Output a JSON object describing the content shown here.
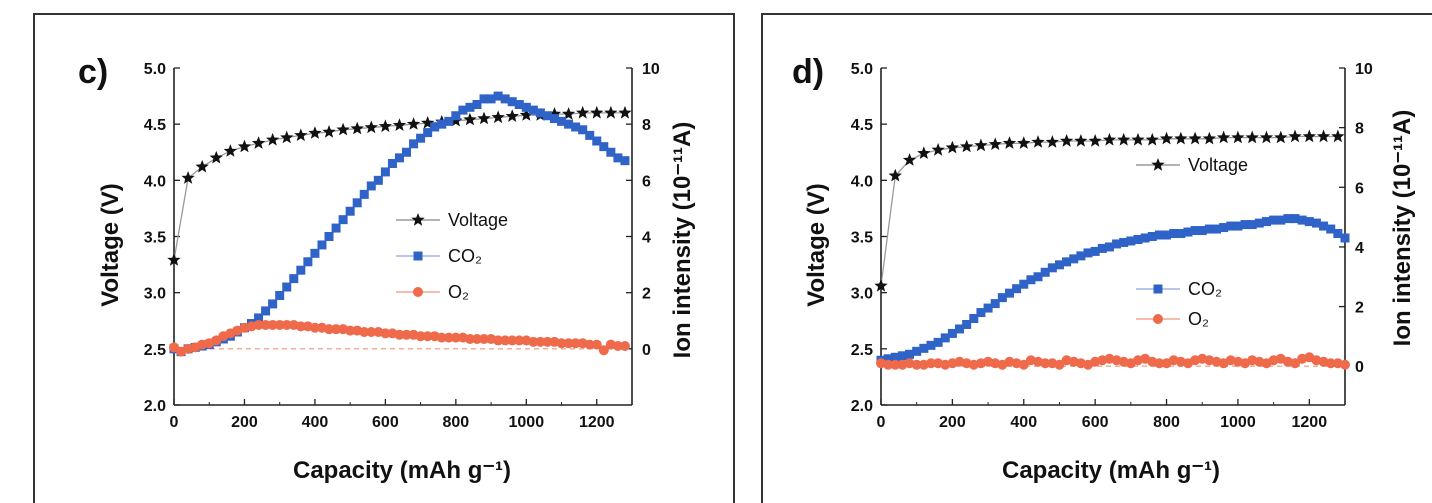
{
  "colors": {
    "background": "#ffffff",
    "frame": "#333333",
    "axis": "#222222",
    "voltage": "#111111",
    "co2": "#2f63c7",
    "co2_line": "#9db4e6",
    "o2": "#ee6a4a",
    "o2_line": "#f5a58f"
  },
  "chart_data": [
    {
      "panel_label": "c)",
      "type": "scatter",
      "xlabel": "Capacity (mAh g⁻¹)",
      "ylabel_left": "Voltage (V)",
      "ylabel_right": "Ion intensity (10⁻¹¹A)",
      "xlim": [
        0,
        1300
      ],
      "ylim_left": [
        2.0,
        5.0
      ],
      "ylim_right": [
        -2,
        10
      ],
      "xticks": [
        "0",
        "200",
        "400",
        "600",
        "800",
        "1000",
        "1200"
      ],
      "yticks_left": [
        "2.0",
        "2.5",
        "3.0",
        "3.5",
        "4.0",
        "4.5",
        "5.0"
      ],
      "yticks_right": [
        "0",
        "2",
        "4",
        "6",
        "8",
        "10"
      ],
      "legend_position": "center-right",
      "legend": [
        {
          "label": "Voltage",
          "marker": "star"
        },
        {
          "label": "CO₂",
          "marker": "square"
        },
        {
          "label": "O₂",
          "marker": "circle"
        }
      ],
      "series": [
        {
          "name": "Voltage",
          "axis": "left",
          "marker": "star",
          "x": [
            0,
            40,
            80,
            120,
            160,
            200,
            240,
            280,
            320,
            360,
            400,
            440,
            480,
            520,
            560,
            600,
            640,
            680,
            720,
            760,
            800,
            840,
            880,
            920,
            960,
            1000,
            1040,
            1080,
            1120,
            1160,
            1200,
            1240,
            1280
          ],
          "y": [
            3.29,
            4.02,
            4.12,
            4.2,
            4.26,
            4.3,
            4.33,
            4.36,
            4.38,
            4.4,
            4.42,
            4.43,
            4.45,
            4.46,
            4.47,
            4.48,
            4.49,
            4.5,
            4.51,
            4.52,
            4.53,
            4.54,
            4.55,
            4.56,
            4.57,
            4.58,
            4.58,
            4.59,
            4.59,
            4.6,
            4.6,
            4.6,
            4.6
          ]
        },
        {
          "name": "CO₂",
          "axis": "right",
          "marker": "square",
          "x": [
            0,
            20,
            40,
            60,
            80,
            100,
            120,
            140,
            160,
            180,
            200,
            220,
            240,
            260,
            280,
            300,
            320,
            340,
            360,
            380,
            400,
            420,
            440,
            460,
            480,
            500,
            520,
            540,
            560,
            580,
            600,
            620,
            640,
            660,
            680,
            700,
            720,
            740,
            760,
            780,
            800,
            820,
            840,
            860,
            880,
            900,
            920,
            940,
            960,
            980,
            1000,
            1020,
            1040,
            1060,
            1080,
            1100,
            1120,
            1140,
            1160,
            1180,
            1200,
            1220,
            1240,
            1260,
            1280
          ],
          "y": [
            0.0,
            -0.1,
            0.0,
            0.05,
            0.1,
            0.15,
            0.25,
            0.35,
            0.45,
            0.6,
            0.75,
            0.9,
            1.1,
            1.35,
            1.6,
            1.9,
            2.2,
            2.5,
            2.8,
            3.1,
            3.4,
            3.7,
            4.0,
            4.3,
            4.6,
            4.9,
            5.2,
            5.5,
            5.8,
            6.0,
            6.3,
            6.6,
            6.8,
            7.0,
            7.3,
            7.5,
            7.7,
            7.9,
            8.0,
            8.1,
            8.3,
            8.5,
            8.6,
            8.7,
            8.9,
            8.9,
            9.0,
            8.9,
            8.8,
            8.7,
            8.6,
            8.5,
            8.4,
            8.3,
            8.2,
            8.1,
            8.0,
            7.9,
            7.8,
            7.6,
            7.4,
            7.2,
            7.0,
            6.8,
            6.7
          ]
        },
        {
          "name": "O₂",
          "axis": "right",
          "marker": "circle",
          "x": [
            0,
            20,
            40,
            60,
            80,
            100,
            120,
            140,
            160,
            180,
            200,
            220,
            240,
            260,
            280,
            300,
            320,
            340,
            360,
            380,
            400,
            420,
            440,
            460,
            480,
            500,
            520,
            540,
            560,
            580,
            600,
            620,
            640,
            660,
            680,
            700,
            720,
            740,
            760,
            780,
            800,
            820,
            840,
            860,
            880,
            900,
            920,
            940,
            960,
            980,
            1000,
            1020,
            1040,
            1060,
            1080,
            1100,
            1120,
            1140,
            1160,
            1180,
            1200,
            1220,
            1240,
            1260,
            1280
          ],
          "y": [
            0.05,
            -0.1,
            0.0,
            0.05,
            0.15,
            0.2,
            0.3,
            0.45,
            0.55,
            0.65,
            0.75,
            0.8,
            0.85,
            0.85,
            0.85,
            0.85,
            0.85,
            0.85,
            0.8,
            0.8,
            0.75,
            0.75,
            0.7,
            0.7,
            0.7,
            0.65,
            0.65,
            0.6,
            0.6,
            0.6,
            0.55,
            0.55,
            0.5,
            0.5,
            0.5,
            0.45,
            0.45,
            0.45,
            0.4,
            0.4,
            0.4,
            0.4,
            0.35,
            0.35,
            0.35,
            0.35,
            0.3,
            0.3,
            0.3,
            0.3,
            0.3,
            0.25,
            0.25,
            0.25,
            0.25,
            0.2,
            0.2,
            0.2,
            0.2,
            0.15,
            0.15,
            -0.05,
            0.15,
            0.1,
            0.1
          ]
        }
      ]
    },
    {
      "panel_label": "d)",
      "type": "scatter",
      "xlabel": "Capacity (mAh g⁻¹)",
      "ylabel_left": "Voltage (V)",
      "ylabel_right": "Ion intensity (10⁻¹¹A)",
      "xlim": [
        0,
        1300
      ],
      "ylim_left": [
        2.0,
        5.0
      ],
      "ylim_right": [
        -1.3,
        10
      ],
      "xticks": [
        "0",
        "200",
        "400",
        "600",
        "800",
        "1000",
        "1200"
      ],
      "yticks_left": [
        "2.0",
        "2.5",
        "3.0",
        "3.5",
        "4.0",
        "4.5",
        "5.0"
      ],
      "yticks_right": [
        "0",
        "2",
        "4",
        "6",
        "8",
        "10"
      ],
      "legend_position": "right",
      "legend": [
        {
          "label": "Voltage",
          "marker": "star"
        },
        {
          "label": "CO₂",
          "marker": "square"
        },
        {
          "label": "O₂",
          "marker": "circle"
        }
      ],
      "series": [
        {
          "name": "Voltage",
          "axis": "left",
          "marker": "star",
          "x": [
            0,
            40,
            80,
            120,
            160,
            200,
            240,
            280,
            320,
            360,
            400,
            440,
            480,
            520,
            560,
            600,
            640,
            680,
            720,
            760,
            800,
            840,
            880,
            920,
            960,
            1000,
            1040,
            1080,
            1120,
            1160,
            1200,
            1240,
            1280
          ],
          "y": [
            3.06,
            4.04,
            4.18,
            4.24,
            4.27,
            4.29,
            4.3,
            4.31,
            4.32,
            4.33,
            4.33,
            4.34,
            4.34,
            4.35,
            4.35,
            4.35,
            4.36,
            4.36,
            4.36,
            4.36,
            4.37,
            4.37,
            4.37,
            4.37,
            4.38,
            4.38,
            4.38,
            4.38,
            4.38,
            4.39,
            4.39,
            4.39,
            4.39
          ]
        },
        {
          "name": "CO₂",
          "axis": "right",
          "marker": "square",
          "x": [
            0,
            20,
            40,
            60,
            80,
            100,
            120,
            140,
            160,
            180,
            200,
            220,
            240,
            260,
            280,
            300,
            320,
            340,
            360,
            380,
            400,
            420,
            440,
            460,
            480,
            500,
            520,
            540,
            560,
            580,
            600,
            620,
            640,
            660,
            680,
            700,
            720,
            740,
            760,
            780,
            800,
            820,
            840,
            860,
            880,
            900,
            920,
            940,
            960,
            980,
            1000,
            1020,
            1040,
            1060,
            1080,
            1100,
            1120,
            1140,
            1160,
            1180,
            1200,
            1220,
            1240,
            1260,
            1280,
            1300
          ],
          "y": [
            0.2,
            0.25,
            0.3,
            0.35,
            0.4,
            0.5,
            0.6,
            0.7,
            0.8,
            0.95,
            1.1,
            1.25,
            1.4,
            1.6,
            1.8,
            1.95,
            2.1,
            2.3,
            2.45,
            2.6,
            2.75,
            2.9,
            3.0,
            3.15,
            3.3,
            3.4,
            3.5,
            3.6,
            3.7,
            3.8,
            3.85,
            3.95,
            4.0,
            4.1,
            4.15,
            4.2,
            4.25,
            4.3,
            4.35,
            4.4,
            4.4,
            4.45,
            4.45,
            4.5,
            4.55,
            4.55,
            4.6,
            4.6,
            4.65,
            4.7,
            4.7,
            4.75,
            4.75,
            4.8,
            4.85,
            4.9,
            4.9,
            4.95,
            4.95,
            4.9,
            4.85,
            4.8,
            4.7,
            4.6,
            4.45,
            4.3
          ]
        },
        {
          "name": "O₂",
          "axis": "right",
          "marker": "circle",
          "x": [
            0,
            20,
            40,
            60,
            80,
            100,
            120,
            140,
            160,
            180,
            200,
            220,
            240,
            260,
            280,
            300,
            320,
            340,
            360,
            380,
            400,
            420,
            440,
            460,
            480,
            500,
            520,
            540,
            560,
            580,
            600,
            620,
            640,
            660,
            680,
            700,
            720,
            740,
            760,
            780,
            800,
            820,
            840,
            860,
            880,
            900,
            920,
            940,
            960,
            980,
            1000,
            1020,
            1040,
            1060,
            1080,
            1100,
            1120,
            1140,
            1160,
            1180,
            1200,
            1220,
            1240,
            1260,
            1280,
            1300
          ],
          "y": [
            0.1,
            0.05,
            0.05,
            0.05,
            0.1,
            0.05,
            0.05,
            0.1,
            0.1,
            0.05,
            0.1,
            0.15,
            0.1,
            0.05,
            0.1,
            0.15,
            0.1,
            0.05,
            0.15,
            0.1,
            0.05,
            0.2,
            0.15,
            0.1,
            0.1,
            0.05,
            0.2,
            0.15,
            0.1,
            0.05,
            0.15,
            0.2,
            0.25,
            0.2,
            0.15,
            0.1,
            0.2,
            0.25,
            0.15,
            0.1,
            0.1,
            0.2,
            0.15,
            0.1,
            0.2,
            0.25,
            0.2,
            0.15,
            0.1,
            0.2,
            0.15,
            0.1,
            0.2,
            0.15,
            0.1,
            0.2,
            0.25,
            0.15,
            0.1,
            0.25,
            0.3,
            0.2,
            0.15,
            0.1,
            0.1,
            0.05
          ]
        }
      ]
    }
  ]
}
